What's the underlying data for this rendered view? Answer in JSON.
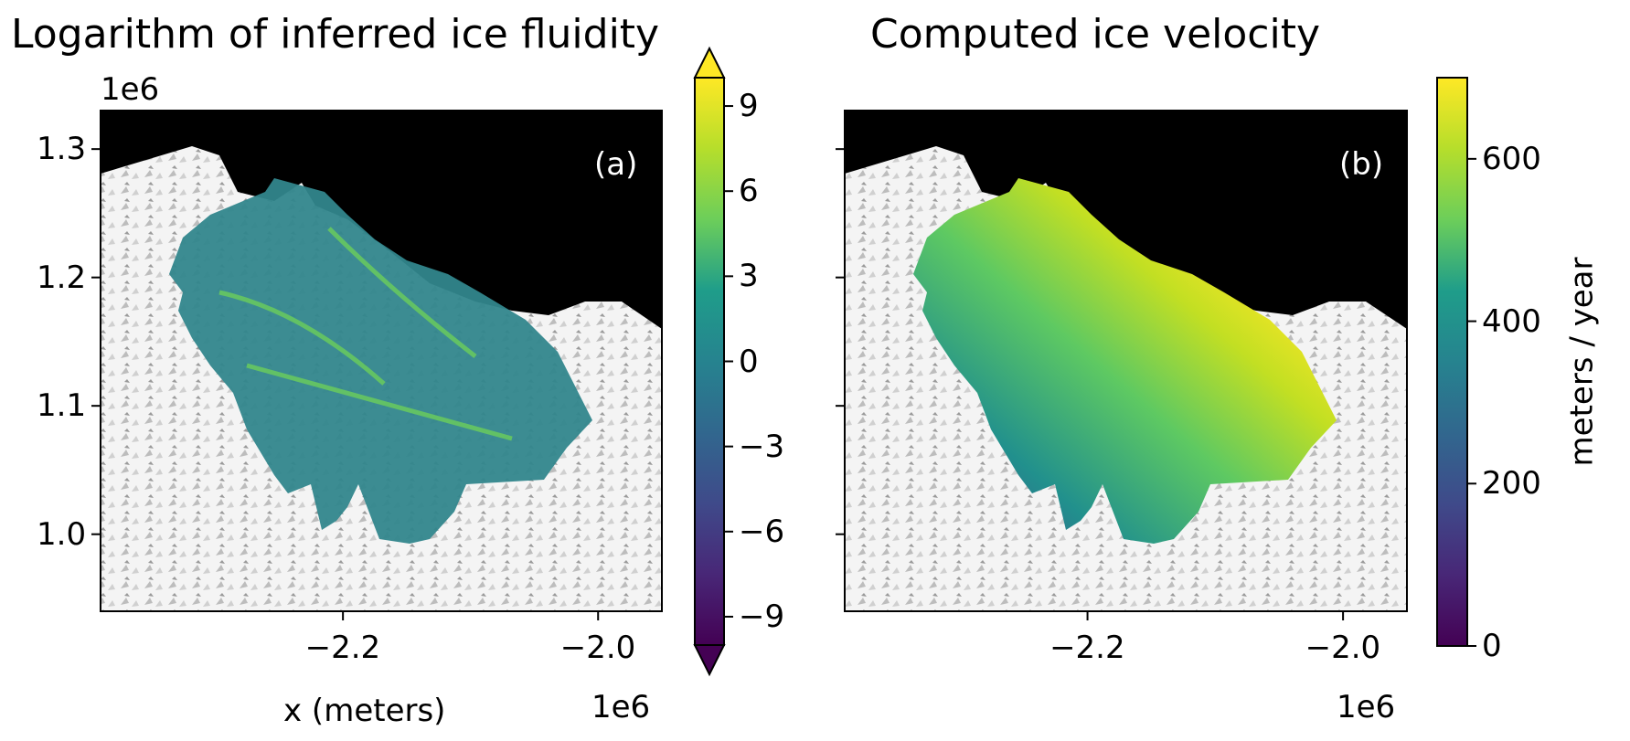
{
  "chart_data": [
    {
      "type": "heatmap",
      "title": "Logarithm of inferred ice fluidity",
      "panel_label": "(a)",
      "xlabel": "x (meters)",
      "x_offset": "1e6",
      "y_offset": "1e6",
      "x_ticks": [
        -2.2,
        -2.0
      ],
      "x_tick_labels": [
        "−2.2",
        "−2.0"
      ],
      "y_ticks": [
        1.0,
        1.1,
        1.2,
        1.3
      ],
      "y_tick_labels": [
        "1.0",
        "1.1",
        "1.2",
        "1.3"
      ],
      "xlim": [
        -2.39,
        -1.95
      ],
      "ylim": [
        0.94,
        1.33
      ],
      "colorbar": {
        "colormap": "viridis",
        "range": [
          -10,
          10
        ],
        "extend": "both",
        "ticks": [
          -9,
          -6,
          -3,
          0,
          3,
          6,
          9
        ],
        "tick_labels": [
          "−9",
          "−6",
          "−3",
          "0",
          "3",
          "6",
          "9"
        ],
        "label": ""
      }
    },
    {
      "type": "heatmap",
      "title": "Computed ice velocity",
      "panel_label": "(b)",
      "xlabel": "",
      "x_offset": "1e6",
      "x_ticks": [
        -2.2,
        -2.0
      ],
      "x_tick_labels": [
        "−2.2",
        "−2.0"
      ],
      "xlim": [
        -2.39,
        -1.95
      ],
      "ylim": [
        0.94,
        1.33
      ],
      "colorbar": {
        "colormap": "viridis",
        "range": [
          0,
          700
        ],
        "ticks": [
          0,
          200,
          400,
          600
        ],
        "tick_labels": [
          "0",
          "200",
          "400",
          "600"
        ],
        "label": "meters / year"
      }
    }
  ],
  "colors": {
    "viridis": [
      "#440154",
      "#482777",
      "#3f4a8a",
      "#31678e",
      "#26838f",
      "#1f9d8a",
      "#6cce5a",
      "#b6de2b",
      "#fee825"
    ],
    "frame": "#000000",
    "background_ocean": "#000000",
    "ice_sheet": "#f2f2f2"
  }
}
